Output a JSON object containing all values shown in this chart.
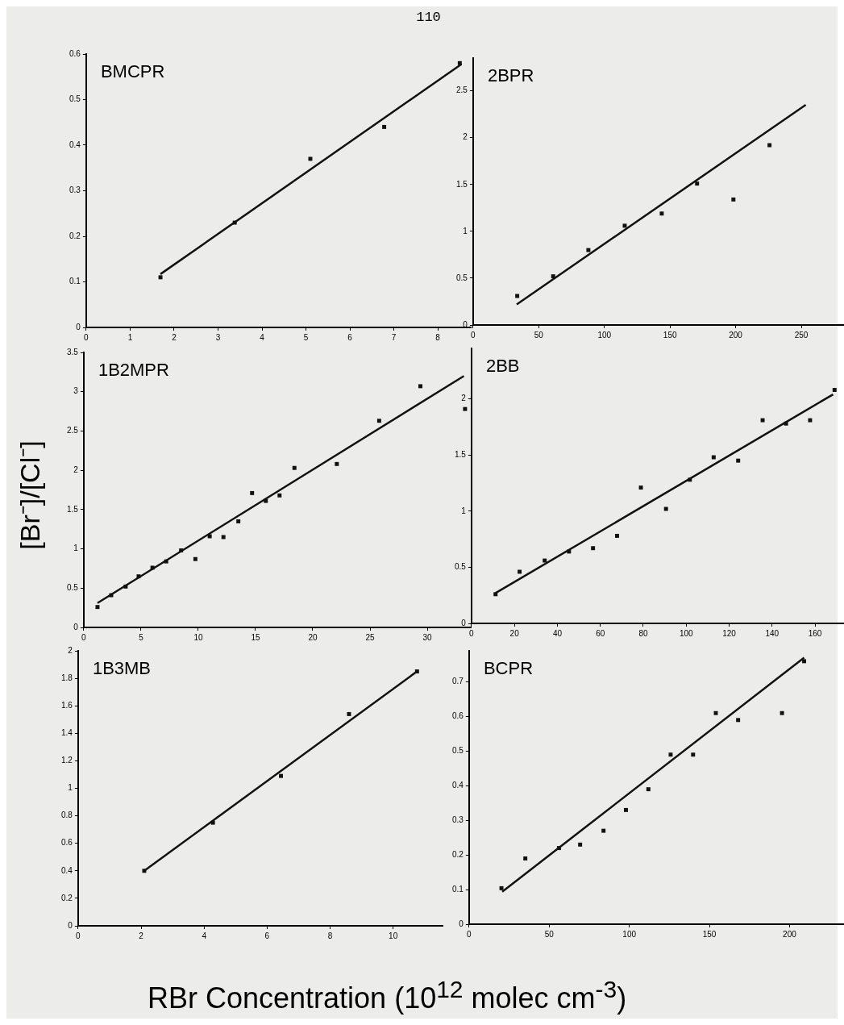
{
  "chart_data": [
    {
      "type": "scatter",
      "title": "BMCPR",
      "annotations": [
        "110"
      ],
      "xlim": [
        0,
        8.75
      ],
      "xticks": [
        0,
        1,
        2,
        3,
        4,
        5,
        6,
        7,
        8
      ],
      "ylim": [
        0,
        0.6
      ],
      "yticks": [
        0,
        0.1,
        0.2,
        0.3,
        0.4,
        0.5,
        0.6
      ],
      "grid": false,
      "legend": false,
      "series": [
        {
          "type": "scatter",
          "color": "#111111",
          "marker": "square",
          "x": [
            1.69,
            3.38,
            5.1,
            6.78,
            8.5
          ],
          "values": [
            0.11,
            0.23,
            0.37,
            0.44,
            0.58
          ]
        },
        {
          "type": "line",
          "color": "#111111",
          "marker": "none",
          "x": [
            1.69,
            8.54
          ],
          "values": [
            0.117,
            0.578
          ]
        }
      ]
    },
    {
      "type": "scatter",
      "title": "2BPR",
      "xlim": [
        0,
        285
      ],
      "xticks": [
        0,
        50,
        100,
        150,
        200,
        250
      ],
      "ylim": [
        0,
        2.85
      ],
      "yticks": [
        0,
        0.5,
        1,
        1.5,
        2,
        2.5
      ],
      "grid": false,
      "legend": false,
      "series": [
        {
          "type": "scatter",
          "color": "#111111",
          "marker": "square",
          "x": [
            33.6,
            61,
            87.8,
            115.5,
            143.7,
            170.6,
            198.3,
            225.8
          ],
          "values": [
            0.31,
            0.52,
            0.8,
            1.06,
            1.19,
            1.51,
            1.34,
            1.92
          ]
        },
        {
          "type": "line",
          "color": "#111111",
          "marker": "none",
          "x": [
            33.2,
            253.4
          ],
          "values": [
            0.22,
            2.35
          ]
        }
      ]
    },
    {
      "type": "scatter",
      "title": "1B2MPR",
      "ylabel": "[Br⁻]/[Cl⁻]",
      "xlim": [
        0,
        33.8
      ],
      "xticks": [
        0,
        5,
        10,
        15,
        20,
        25,
        30
      ],
      "ylim": [
        0,
        3.5
      ],
      "yticks": [
        0,
        0.5,
        1,
        1.5,
        2,
        2.5,
        3,
        3.5
      ],
      "grid": false,
      "legend": false,
      "series": [
        {
          "type": "scatter",
          "color": "#111111",
          "marker": "square",
          "x": [
            1.2,
            2.4,
            3.66,
            4.79,
            6.0,
            7.2,
            8.5,
            9.75,
            11.0,
            12.2,
            13.5,
            14.7,
            15.9,
            17.1,
            18.4,
            22.1,
            25.8,
            29.4,
            33.3
          ],
          "values": [
            0.26,
            0.41,
            0.52,
            0.65,
            0.76,
            0.84,
            0.98,
            0.87,
            1.16,
            1.15,
            1.35,
            1.71,
            1.61,
            1.68,
            2.03,
            2.08,
            2.63,
            3.07,
            2.78
          ]
        },
        {
          "type": "line",
          "color": "#111111",
          "marker": "none",
          "x": [
            1.2,
            33.2
          ],
          "values": [
            0.31,
            3.2
          ]
        }
      ]
    },
    {
      "type": "scatter",
      "title": "2BB",
      "xlim": [
        0,
        175
      ],
      "xticks": [
        0,
        20,
        40,
        60,
        80,
        100,
        120,
        140,
        160
      ],
      "ylim": [
        0,
        2.45
      ],
      "yticks": [
        0,
        0.5,
        1,
        1.5,
        2
      ],
      "grid": false,
      "legend": false,
      "series": [
        {
          "type": "scatter",
          "color": "#111111",
          "marker": "square",
          "x": [
            11.2,
            22.4,
            34.1,
            45.4,
            56.6,
            67.8,
            78.9,
            90.6,
            101.7,
            112.8,
            124.2,
            135.6,
            146.5,
            157.7,
            169.1
          ],
          "values": [
            0.26,
            0.46,
            0.56,
            0.64,
            0.67,
            0.78,
            1.21,
            1.02,
            1.28,
            1.48,
            1.45,
            1.81,
            1.78,
            1.81,
            2.08
          ]
        },
        {
          "type": "line",
          "color": "#111111",
          "marker": "none",
          "x": [
            11.2,
            168.4
          ],
          "values": [
            0.27,
            2.04
          ]
        }
      ]
    },
    {
      "type": "scatter",
      "title": "1B3MB",
      "xlabel": "RBr Concentration (10$^{12}$ molec cm$^{-3}$)",
      "xlim": [
        0,
        11.57
      ],
      "xticks": [
        0,
        2,
        4,
        6,
        8,
        10
      ],
      "ylim": [
        0,
        2
      ],
      "yticks": [
        0,
        0.2,
        0.4,
        0.6,
        0.8,
        1,
        1.2,
        1.4,
        1.6,
        1.8,
        2
      ],
      "grid": false,
      "legend": false,
      "series": [
        {
          "type": "scatter",
          "color": "#111111",
          "marker": "square",
          "x": [
            2.1,
            4.28,
            6.44,
            8.6,
            10.76
          ],
          "values": [
            0.4,
            0.75,
            1.09,
            1.54,
            1.85
          ]
        },
        {
          "type": "line",
          "color": "#111111",
          "marker": "none",
          "x": [
            2.1,
            10.76
          ],
          "values": [
            0.4,
            1.85
          ]
        }
      ]
    },
    {
      "type": "scatter",
      "title": "BCPR",
      "xlim": [
        0,
        236
      ],
      "xticks": [
        0,
        50,
        100,
        150,
        200
      ],
      "ylim": [
        0,
        0.79
      ],
      "yticks": [
        0,
        0.1,
        0.2,
        0.3,
        0.4,
        0.5,
        0.6,
        0.7
      ],
      "grid": false,
      "legend": false,
      "series": [
        {
          "type": "scatter",
          "color": "#111111",
          "marker": "square",
          "x": [
            20.2,
            35.1,
            56.1,
            69.3,
            83.9,
            97.9,
            111.9,
            125.8,
            139.8,
            154,
            167.9,
            195.3,
            209.1
          ],
          "values": [
            0.104,
            0.19,
            0.22,
            0.23,
            0.27,
            0.33,
            0.39,
            0.49,
            0.49,
            0.61,
            0.59,
            0.61,
            0.76
          ]
        },
        {
          "type": "line",
          "color": "#111111",
          "marker": "none",
          "x": [
            20.7,
            209.1
          ],
          "values": [
            0.094,
            0.77
          ]
        }
      ]
    }
  ]
}
